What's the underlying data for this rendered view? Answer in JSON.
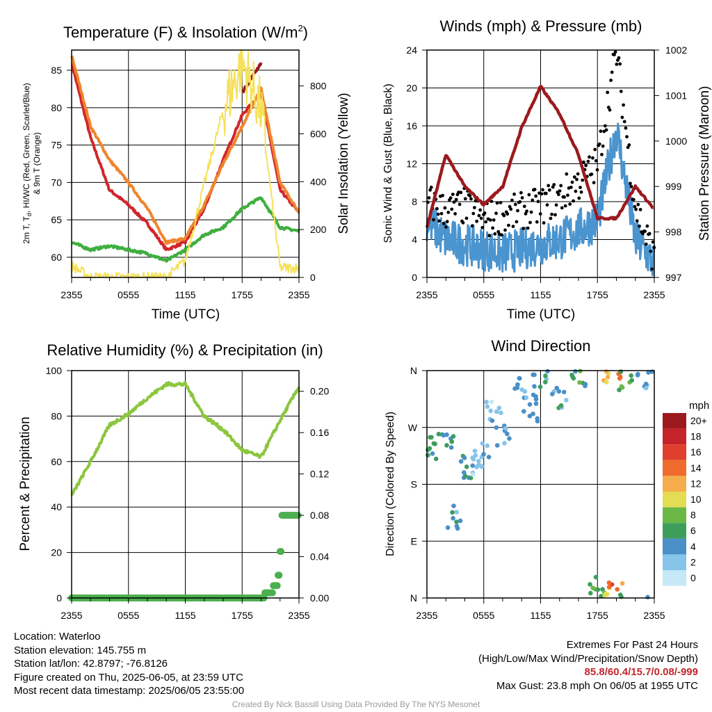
{
  "panels": {
    "temperature": {
      "title": "Temperature (F) & Insolation (W/m",
      "title_sup": "2",
      "title_end": ")",
      "ylabel_left_line1": "2m T, T",
      "ylabel_left_sub": "d",
      "ylabel_left_line1_end": ", HI/WC (Red, Green, Scarlet/Blue)",
      "ylabel_left_line2": "& 9m T (Orange)",
      "ylabel_right": "Solar Insolation (Yellow)",
      "xlabel": "Time (UTC)"
    },
    "winds": {
      "title": "Winds (mph) & Pressure (mb)",
      "ylabel_left": "Sonic Wind & Gust (Blue, Black)",
      "ylabel_right": "Station Pressure (Maroon)",
      "xlabel": "Time (UTC)"
    },
    "humidity": {
      "title": "Relative Humidity (%) & Precipitation (in)",
      "ylabel_left": "Percent & Precipitation"
    },
    "direction": {
      "title": "Wind Direction",
      "ylabel_left": "Direction (Colored By Speed)",
      "colorbar_title": "mph"
    }
  },
  "info": {
    "location": "Location: Waterloo",
    "elevation": "Station elevation: 145.755 m",
    "latlon": "Station lat/lon: 42.8797; -76.8126",
    "created": "Figure created on Thu, 2025-06-05, at 23:59 UTC",
    "recent": "Most recent data timestamp: 2025/06/05 23:55:00",
    "extremes_title": "Extremes For Past 24 Hours",
    "extremes_sub": "(High/Low/Max Wind/Precipitation/Snow Depth)",
    "extremes_values": "85.8/60.4/15.7/0.08/-999",
    "max_gust": "Max Gust: 23.8 mph On 06/05 at 1955 UTC",
    "credit": "Created By Nick Bassill Using Data Provided By The NYS Mesonet"
  },
  "colors": {
    "temp_2m": "#d1262b",
    "temp_9m": "#f0852d",
    "dewpoint": "#3fae3f",
    "heat_index": "#9e1a1e",
    "insolation": "#f5e15a",
    "wind": "#4a94cf",
    "gust": "#000000",
    "pressure": "#9b1a1e",
    "rh": "#8cc63f",
    "precip": "#4caf4f"
  },
  "chart_data": [
    {
      "type": "line",
      "title": "Temperature (F) & Insolation (W/m2)",
      "xlabel": "Time (UTC)",
      "x_ticks": [
        "2355",
        "0555",
        "1155",
        "1755",
        "2355"
      ],
      "x": [
        "2355",
        "0155",
        "0355",
        "0555",
        "0755",
        "0955",
        "1155",
        "1355",
        "1555",
        "1755",
        "1955",
        "2155",
        "2355"
      ],
      "ylim": [
        57.3,
        87.7
      ],
      "y_ticks": [
        60,
        65,
        70,
        75,
        80,
        85
      ],
      "y2lim": [
        0,
        950
      ],
      "y2_ticks": [
        0,
        200,
        400,
        600,
        800
      ],
      "series": [
        {
          "name": "2m T (Red)",
          "color": "#d1262b",
          "axis": "left",
          "values": [
            86.0,
            76.0,
            69.0,
            67.0,
            64.5,
            61.0,
            62.0,
            66.5,
            73.0,
            79.0,
            82.0,
            69.0,
            66.0
          ]
        },
        {
          "name": "9m T (Orange)",
          "color": "#f0852d",
          "axis": "left",
          "values": [
            87.0,
            77.5,
            73.0,
            70.0,
            66.5,
            62.0,
            62.5,
            67.0,
            72.5,
            77.5,
            82.5,
            70.0,
            66.0
          ]
        },
        {
          "name": "Td (Green)",
          "color": "#3fae3f",
          "axis": "left",
          "values": [
            62.0,
            61.0,
            61.5,
            61.0,
            60.5,
            59.5,
            61.0,
            63.0,
            64.0,
            66.5,
            68.0,
            64.0,
            63.5
          ]
        },
        {
          "name": "HI/WC (Scarlet)",
          "color": "#9e1a1e",
          "axis": "left",
          "values": [
            null,
            null,
            null,
            null,
            null,
            null,
            null,
            null,
            null,
            82.0,
            86.0,
            null,
            null
          ]
        },
        {
          "name": "Solar Insolation (Yellow)",
          "color": "#f5e15a",
          "axis": "right",
          "values": [
            50,
            0,
            0,
            0,
            0,
            0,
            70,
            390,
            700,
            900,
            700,
            40,
            40
          ]
        }
      ]
    },
    {
      "type": "line",
      "title": "Winds (mph) & Pressure (mb)",
      "xlabel": "Time (UTC)",
      "x_ticks": [
        "2355",
        "0555",
        "1155",
        "1755",
        "2355"
      ],
      "x": [
        "2355",
        "0155",
        "0355",
        "0555",
        "0755",
        "0955",
        "1155",
        "1355",
        "1555",
        "1755",
        "1955",
        "2155",
        "2355"
      ],
      "ylim": [
        0,
        24
      ],
      "y_ticks": [
        0,
        4,
        8,
        12,
        16,
        20,
        24
      ],
      "y2lim": [
        997,
        1002
      ],
      "y2_ticks": [
        997,
        998,
        999,
        1000,
        1001,
        1002
      ],
      "series": [
        {
          "name": "Sonic Wind (Blue)",
          "color": "#4a94cf",
          "axis": "left",
          "values": [
            6.0,
            4.0,
            3.5,
            3.0,
            2.5,
            3.0,
            3.5,
            4.0,
            5.0,
            6.0,
            15.7,
            4.0,
            1.5
          ]
        },
        {
          "name": "Gust (Black)",
          "color": "#000000",
          "axis": "left",
          "values": [
            8.0,
            7.0,
            7.5,
            6.0,
            6.5,
            7.0,
            7.5,
            8.5,
            10.0,
            12.0,
            23.8,
            7.5,
            2.0
          ]
        },
        {
          "name": "Station Pressure (Maroon)",
          "color": "#9b1a1e",
          "axis": "right",
          "values": [
            998.1,
            999.7,
            999.0,
            998.6,
            999.0,
            1000.3,
            1001.2,
            1000.6,
            999.7,
            998.3,
            998.3,
            999.0,
            998.5
          ]
        }
      ]
    },
    {
      "type": "line",
      "title": "Relative Humidity (%) & Precipitation (in)",
      "x_ticks": [
        "2355",
        "0555",
        "1155",
        "1755",
        "2355"
      ],
      "x": [
        "2355",
        "0155",
        "0355",
        "0555",
        "0755",
        "0955",
        "1155",
        "1355",
        "1555",
        "1755",
        "1955",
        "2155",
        "2355"
      ],
      "ylim": [
        0,
        100
      ],
      "y_ticks": [
        0,
        20,
        40,
        60,
        80,
        100
      ],
      "y2lim": [
        0,
        0.22
      ],
      "y2_ticks": [
        0.0,
        0.04,
        0.08,
        0.12,
        0.16,
        0.2
      ],
      "series": [
        {
          "name": "Relative Humidity",
          "color": "#8cc63f",
          "axis": "left",
          "values": [
            45,
            60,
            76,
            81,
            88,
            94,
            94,
            80,
            74,
            65,
            62,
            78,
            93
          ]
        },
        {
          "name": "Precipitation",
          "color": "#4caf4f",
          "axis": "right",
          "values": [
            0.0,
            0.0,
            0.0,
            0.0,
            0.0,
            0.0,
            0.0,
            0.0,
            0.0,
            0.0,
            0.0,
            0.02,
            0.08
          ]
        }
      ]
    },
    {
      "type": "scatter",
      "title": "Wind Direction",
      "x_ticks": [
        "2355",
        "0555",
        "1155",
        "1755",
        "2355"
      ],
      "y_ticks": [
        "N",
        "E",
        "S",
        "W",
        "N"
      ],
      "ylim": [
        0,
        360
      ],
      "colorbar": {
        "title": "mph",
        "labels": [
          "0",
          "2",
          "4",
          "6",
          "8",
          "10",
          "12",
          "14",
          "16",
          "18",
          "20+"
        ],
        "colors": [
          "#c6e8f7",
          "#86c4ea",
          "#4a8fc7",
          "#3d9e5c",
          "#6cb847",
          "#e4dc53",
          "#f6ac4c",
          "#ef6b2e",
          "#e03f2d",
          "#c42329",
          "#9c1a1e"
        ]
      },
      "points": [
        {
          "x": "2355",
          "dir": 240,
          "speed": 5
        },
        {
          "x": "0155",
          "dir": 245,
          "speed": 5
        },
        {
          "x": "0255",
          "dir": 130,
          "speed": 4
        },
        {
          "x": "0355",
          "dir": 205,
          "speed": 5
        },
        {
          "x": "0455",
          "dir": 215,
          "speed": 2
        },
        {
          "x": "0555",
          "dir": 225,
          "speed": 3
        },
        {
          "x": "0655",
          "dir": 300,
          "speed": 2
        },
        {
          "x": "0755",
          "dir": 260,
          "speed": 3
        },
        {
          "x": "0955",
          "dir": 330,
          "speed": 3
        },
        {
          "x": "1055",
          "dir": 300,
          "speed": 4
        },
        {
          "x": "1155",
          "dir": 340,
          "speed": 4
        },
        {
          "x": "1355",
          "dir": 320,
          "speed": 4
        },
        {
          "x": "1555",
          "dir": 340,
          "speed": 6
        },
        {
          "x": "1755",
          "dir": 20,
          "speed": 7
        },
        {
          "x": "1855",
          "dir": 358,
          "speed": 10
        },
        {
          "x": "1955",
          "dir": 5,
          "speed": 14
        },
        {
          "x": "2055",
          "dir": 345,
          "speed": 7
        },
        {
          "x": "2255",
          "dir": 350,
          "speed": 4
        }
      ]
    }
  ]
}
